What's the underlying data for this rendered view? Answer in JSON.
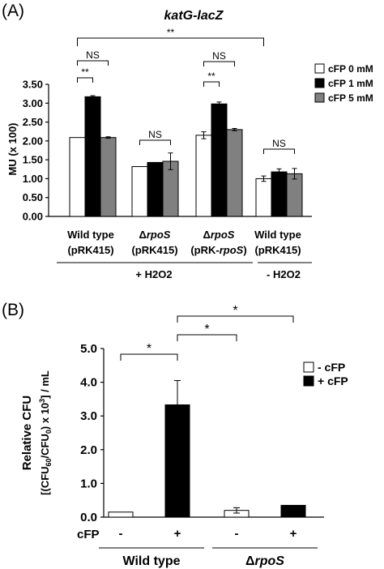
{
  "chart_data": [
    {
      "panel_label": "(A)",
      "title": "katG-lacZ",
      "type": "bar",
      "ylabel": "MU (x 100)",
      "ylim": [
        0,
        3.5
      ],
      "yticks": [
        "0.00",
        "0.50",
        "1.00",
        "1.50",
        "2.00",
        "2.50",
        "3.00",
        "3.50"
      ],
      "categories": [
        [
          "Wild type",
          "(pRK415)"
        ],
        [
          [
            "Δ",
            "rpoS"
          ],
          "(pRK415)"
        ],
        [
          [
            "Δ",
            "rpoS"
          ],
          [
            "(pRK-",
            "rpoS",
            ")"
          ]
        ],
        [
          "Wild type",
          "(pRK415)"
        ]
      ],
      "series": [
        {
          "name": "cFP 0 mM",
          "color": "#ffffff",
          "values": [
            2.09,
            1.32,
            2.15,
            1.0
          ],
          "errors": [
            0.0,
            0.0,
            0.09,
            0.07
          ]
        },
        {
          "name": "cFP 1 mM",
          "color": "#000000",
          "values": [
            3.17,
            1.43,
            2.98,
            1.18
          ],
          "errors": [
            0.03,
            0.0,
            0.05,
            0.08
          ]
        },
        {
          "name": "cFP 5 mM",
          "color": "#808080",
          "values": [
            2.09,
            1.46,
            2.3,
            1.13
          ],
          "errors": [
            0.02,
            0.22,
            0.03,
            0.14
          ]
        }
      ],
      "group_labels": [
        "+ H2O2",
        "- H2O2"
      ],
      "significance": [
        {
          "label": "**",
          "from": [
            0,
            0
          ],
          "to": [
            3,
            0
          ]
        },
        {
          "label": "NS",
          "from": [
            0,
            0
          ],
          "to": [
            0,
            2
          ]
        },
        {
          "label": "**",
          "from": [
            0,
            0
          ],
          "to": [
            0,
            1
          ]
        },
        {
          "label": "NS",
          "from": [
            1,
            0
          ],
          "to": [
            1,
            2
          ]
        },
        {
          "label": "NS",
          "from": [
            2,
            0
          ],
          "to": [
            2,
            2
          ]
        },
        {
          "label": "**",
          "from": [
            2,
            0
          ],
          "to": [
            2,
            1
          ]
        },
        {
          "label": "NS",
          "from": [
            3,
            0
          ],
          "to": [
            3,
            2
          ]
        }
      ],
      "legend_position": "top-right"
    },
    {
      "panel_label": "(B)",
      "type": "bar",
      "ylabel": "Relative CFU",
      "ylabel_sub": [
        "[(CFU",
        "60",
        "/CFU",
        "0",
        ") x 10",
        "3",
        "] / mL"
      ],
      "ylim": [
        0,
        5.0
      ],
      "yticks": [
        "0.0",
        "1.0",
        "2.0",
        "3.0",
        "4.0",
        "5.0"
      ],
      "xrow_label": "cFP",
      "x_signs": [
        "-",
        "+",
        "-",
        "+"
      ],
      "groups": [
        [
          "Wild type"
        ],
        [
          "Δ",
          "rpoS"
        ]
      ],
      "series": [
        {
          "name": "- cFP",
          "color": "#ffffff"
        },
        {
          "name": "+ cFP",
          "color": "#000000"
        }
      ],
      "values": [
        0.15,
        3.33,
        0.2,
        0.35
      ],
      "errors": [
        0.0,
        0.72,
        0.08,
        0.0
      ],
      "significance": [
        {
          "label": "*",
          "from": 0,
          "to": 1
        },
        {
          "label": "*",
          "from": 1,
          "to": 2
        },
        {
          "label": "*",
          "from": 1,
          "to": 3
        }
      ],
      "legend_position": "top-right"
    }
  ]
}
